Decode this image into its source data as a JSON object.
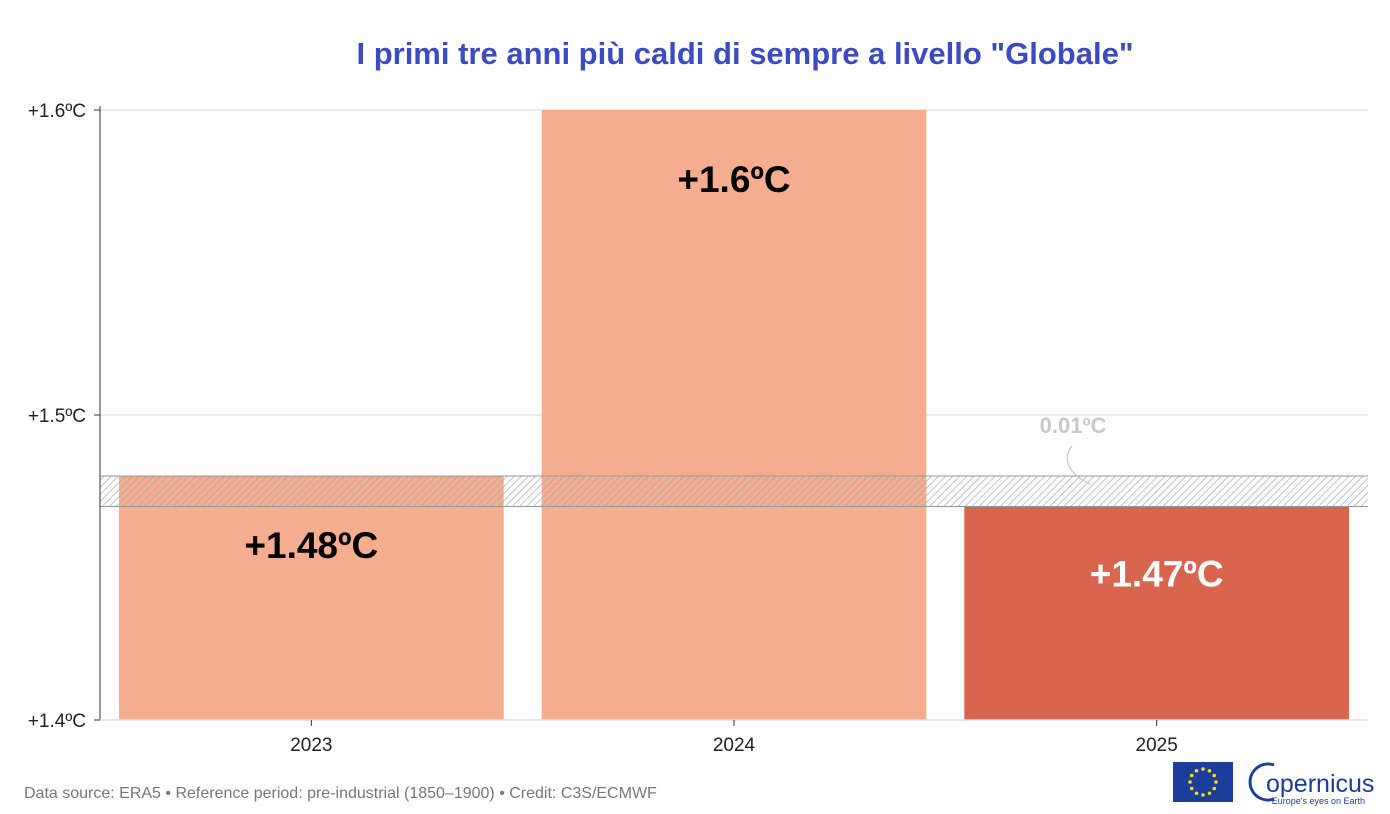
{
  "chart_data": {
    "type": "bar",
    "title": "I primi tre anni più caldi di sempre a livello \"Globale\"",
    "categories": [
      "2023",
      "2024",
      "2025"
    ],
    "values": [
      1.48,
      1.6,
      1.47
    ],
    "value_labels": [
      "+1.48ºC",
      "+1.6ºC",
      "+1.47ºC"
    ],
    "bar_colors": [
      "#f4ad8e",
      "#f4ad8e",
      "#d9654e"
    ],
    "value_label_colors": [
      "#000000",
      "#000000",
      "#ffffff"
    ],
    "ylim": [
      1.4,
      1.6
    ],
    "yticks": [
      1.4,
      1.5,
      1.6
    ],
    "ytick_labels": [
      "+1.4ºC",
      "+1.5ºC",
      "+1.6ºC"
    ],
    "grid": true,
    "xlabel": "",
    "ylabel": "",
    "annotation": {
      "text": "0.01ºC",
      "band_from": 1.47,
      "band_to": 1.48
    }
  },
  "source": "Data source: ERA5 • Reference period: pre-industrial (1850–1900) • Credit: C3S/ECMWF",
  "logos": {
    "eu_flag": "eu-flag-icon",
    "copernicus_name": "opernicus",
    "copernicus_tagline": "Europe's eyes on Earth"
  },
  "colors": {
    "title": "#3c4bc4",
    "grid": "#e6e6e6",
    "band_hatch": "#b5b5b5"
  }
}
